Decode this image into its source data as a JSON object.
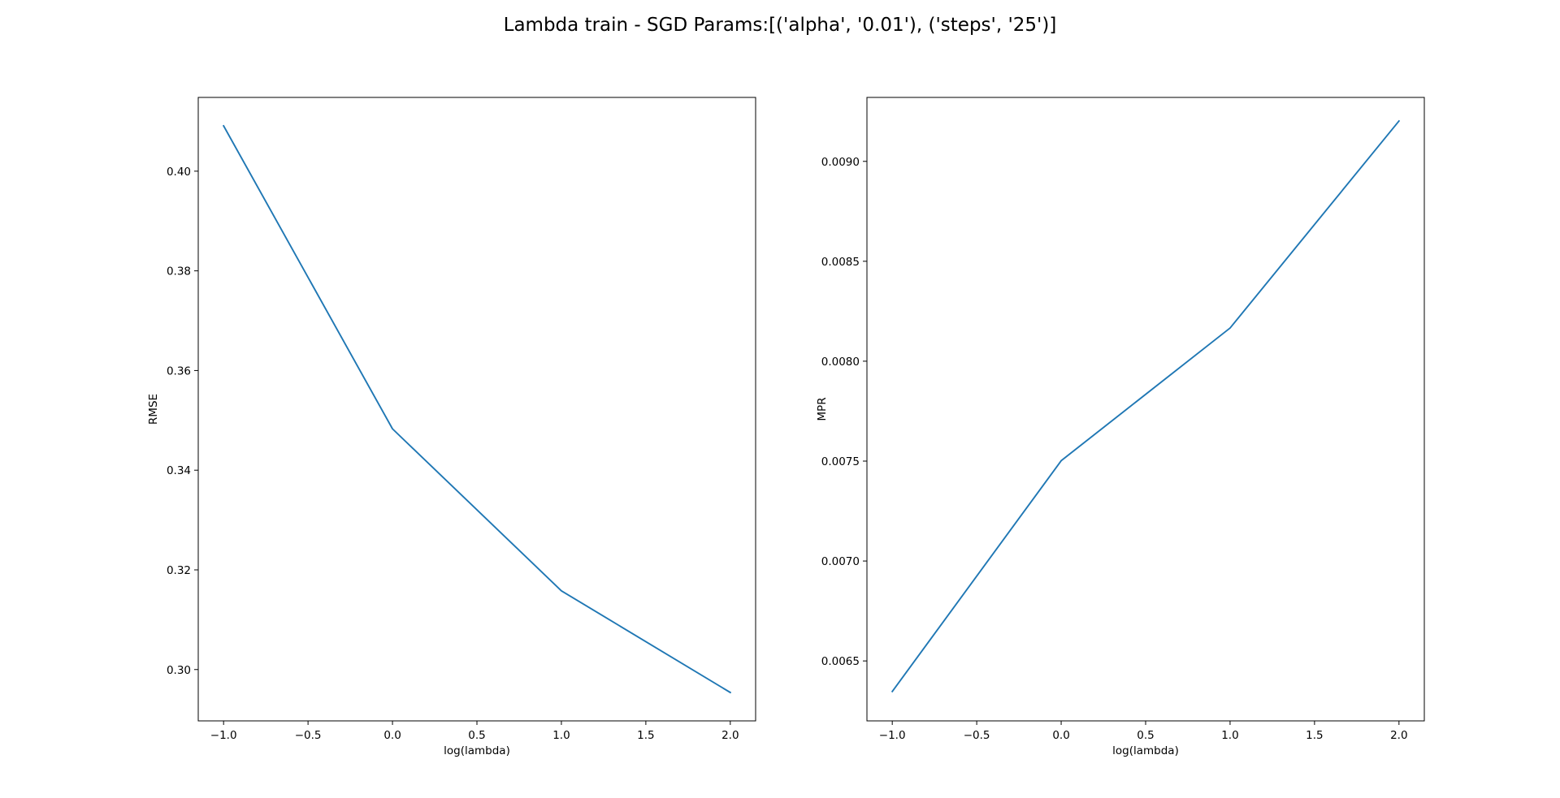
{
  "figure": {
    "title": "Lambda train - SGD Params:[('alpha', '0.01'), ('steps', '25')]"
  },
  "colors": {
    "line": "#1f77b4",
    "frame": "#000000",
    "background": "#ffffff"
  },
  "chart_data": [
    {
      "type": "line",
      "title": "",
      "xlabel": "log(lambda)",
      "ylabel": "RMSE",
      "xlim": [
        -1.15,
        2.15
      ],
      "ylim": [
        0.2897,
        0.4148
      ],
      "xticks": [
        -1.0,
        -0.5,
        0.0,
        0.5,
        1.0,
        1.5,
        2.0
      ],
      "xtick_labels": [
        "−1.0",
        "−0.5",
        "0.0",
        "0.5",
        "1.0",
        "1.5",
        "2.0"
      ],
      "yticks": [
        0.3,
        0.32,
        0.34,
        0.36,
        0.38,
        0.4
      ],
      "ytick_labels": [
        "0.30",
        "0.32",
        "0.34",
        "0.36",
        "0.38",
        "0.40"
      ],
      "grid": false,
      "series": [
        {
          "x": [
            -1,
            0,
            1,
            2
          ],
          "y": [
            0.4091,
            0.3483,
            0.3158,
            0.2954
          ]
        }
      ]
    },
    {
      "type": "line",
      "title": "",
      "xlabel": "log(lambda)",
      "ylabel": "MPR",
      "xlim": [
        -1.15,
        2.15
      ],
      "ylim": [
        0.0062,
        0.00932
      ],
      "xticks": [
        -1.0,
        -0.5,
        0.0,
        0.5,
        1.0,
        1.5,
        2.0
      ],
      "xtick_labels": [
        "−1.0",
        "−0.5",
        "0.0",
        "0.5",
        "1.0",
        "1.5",
        "2.0"
      ],
      "yticks": [
        0.0065,
        0.007,
        0.0075,
        0.008,
        0.0085,
        0.009
      ],
      "ytick_labels": [
        "0.0065",
        "0.0070",
        "0.0075",
        "0.0080",
        "0.0085",
        "0.0090"
      ],
      "grid": false,
      "series": [
        {
          "x": [
            -1,
            0,
            1,
            2
          ],
          "y": [
            0.006347,
            0.007502,
            0.008166,
            0.009202
          ]
        }
      ]
    }
  ]
}
